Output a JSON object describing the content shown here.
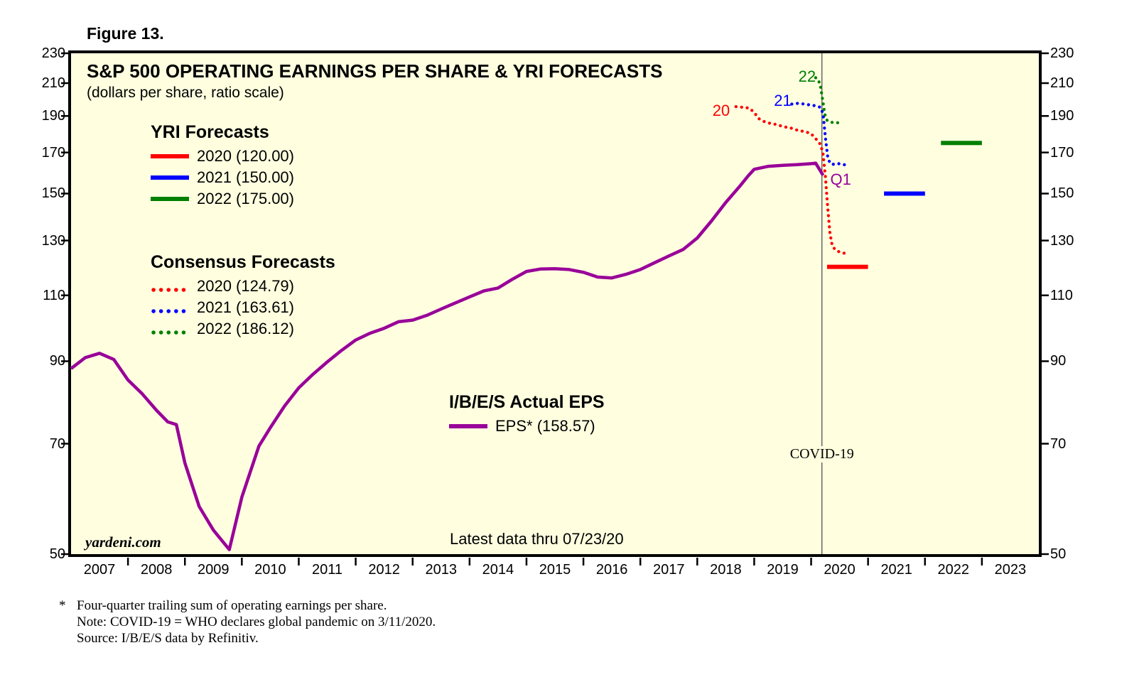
{
  "figure_label": "Figure 13.",
  "chart_data": {
    "type": "line",
    "title": "S&P 500 OPERATING EARNINGS PER SHARE & YRI FORECASTS",
    "subtitle": "(dollars per share, ratio scale)",
    "y_scale": "log",
    "grid": false,
    "ylim": [
      50,
      230
    ],
    "xlim": [
      2007,
      2024
    ],
    "y_ticks": [
      230,
      210,
      190,
      170,
      150,
      130,
      110,
      90,
      70,
      50
    ],
    "x_years": [
      2007,
      2008,
      2009,
      2010,
      2011,
      2012,
      2013,
      2014,
      2015,
      2016,
      2017,
      2018,
      2019,
      2020,
      2021,
      2022,
      2023
    ],
    "covid_line_x": 2020.19,
    "series": [
      {
        "name": "Consensus 2020",
        "style": "dotted",
        "color": "#FF0000",
        "points": [
          [
            2018.68,
            195.5
          ],
          [
            2018.76,
            195.2
          ],
          [
            2018.84,
            195
          ],
          [
            2018.92,
            194.5
          ],
          [
            2019.0,
            192
          ],
          [
            2019.08,
            188.5
          ],
          [
            2019.16,
            187
          ],
          [
            2019.25,
            186
          ],
          [
            2019.33,
            185.5
          ],
          [
            2019.41,
            185
          ],
          [
            2019.5,
            184
          ],
          [
            2019.58,
            183.5
          ],
          [
            2019.66,
            183
          ],
          [
            2019.75,
            182
          ],
          [
            2019.83,
            181.5
          ],
          [
            2019.91,
            181
          ],
          [
            2020.0,
            180
          ],
          [
            2020.06,
            178
          ],
          [
            2020.12,
            176
          ],
          [
            2020.17,
            174
          ],
          [
            2020.21,
            169
          ],
          [
            2020.25,
            158
          ],
          [
            2020.29,
            144
          ],
          [
            2020.33,
            133
          ],
          [
            2020.37,
            128
          ],
          [
            2020.42,
            126.5
          ],
          [
            2020.46,
            126
          ],
          [
            2020.5,
            125.5
          ],
          [
            2020.55,
            125.2
          ],
          [
            2020.6,
            125
          ],
          [
            2020.64,
            124.79
          ]
        ]
      },
      {
        "name": "Consensus 2021",
        "style": "dotted",
        "color": "#0000FF",
        "points": [
          [
            2019.66,
            197
          ],
          [
            2019.72,
            197.3
          ],
          [
            2019.78,
            197.5
          ],
          [
            2019.84,
            197.2
          ],
          [
            2019.9,
            197
          ],
          [
            2019.96,
            196.6
          ],
          [
            2020.02,
            196.3
          ],
          [
            2020.08,
            196
          ],
          [
            2020.13,
            195.5
          ],
          [
            2020.17,
            195
          ],
          [
            2020.21,
            191
          ],
          [
            2020.25,
            178
          ],
          [
            2020.29,
            168
          ],
          [
            2020.33,
            164.5
          ],
          [
            2020.38,
            164
          ],
          [
            2020.43,
            164
          ],
          [
            2020.48,
            164.3
          ],
          [
            2020.53,
            164.2
          ],
          [
            2020.58,
            163.8
          ],
          [
            2020.62,
            163.61
          ]
        ]
      },
      {
        "name": "Consensus 2022",
        "style": "dotted",
        "color": "#008000",
        "points": [
          [
            2020.08,
            213.5
          ],
          [
            2020.12,
            212.5
          ],
          [
            2020.16,
            209
          ],
          [
            2020.2,
            200
          ],
          [
            2020.24,
            191
          ],
          [
            2020.28,
            187.5
          ],
          [
            2020.32,
            186.6
          ],
          [
            2020.37,
            186.3
          ],
          [
            2020.42,
            186.2
          ],
          [
            2020.47,
            186.1
          ],
          [
            2020.52,
            186.12
          ]
        ]
      },
      {
        "name": "I/B/E/S Actual EPS",
        "style": "solid",
        "color": "#990099",
        "width": 4.5,
        "points": [
          [
            2007.0,
            88
          ],
          [
            2007.25,
            91
          ],
          [
            2007.5,
            92.2
          ],
          [
            2007.75,
            90.5
          ],
          [
            2008.0,
            85
          ],
          [
            2008.25,
            81.5
          ],
          [
            2008.5,
            77.5
          ],
          [
            2008.7,
            74.8
          ],
          [
            2008.85,
            74.2
          ],
          [
            2009.0,
            66
          ],
          [
            2009.25,
            57.8
          ],
          [
            2009.5,
            53.8
          ],
          [
            2009.78,
            50.7
          ],
          [
            2010.0,
            59.5
          ],
          [
            2010.3,
            69.5
          ],
          [
            2010.5,
            73.5
          ],
          [
            2010.75,
            78.5
          ],
          [
            2011.0,
            83
          ],
          [
            2011.25,
            86.5
          ],
          [
            2011.5,
            89.8
          ],
          [
            2011.75,
            93
          ],
          [
            2012.0,
            96
          ],
          [
            2012.25,
            98
          ],
          [
            2012.5,
            99.5
          ],
          [
            2012.75,
            101.5
          ],
          [
            2013.0,
            102
          ],
          [
            2013.25,
            103.5
          ],
          [
            2013.5,
            105.5
          ],
          [
            2013.75,
            107.5
          ],
          [
            2014.0,
            109.5
          ],
          [
            2014.25,
            111.5
          ],
          [
            2014.5,
            112.5
          ],
          [
            2014.75,
            115.5
          ],
          [
            2015.0,
            118.3
          ],
          [
            2015.25,
            119.2
          ],
          [
            2015.5,
            119.3
          ],
          [
            2015.75,
            119
          ],
          [
            2016.0,
            118
          ],
          [
            2016.25,
            116.3
          ],
          [
            2016.5,
            116
          ],
          [
            2016.75,
            117.3
          ],
          [
            2017.0,
            119
          ],
          [
            2017.25,
            121.5
          ],
          [
            2017.5,
            124
          ],
          [
            2017.75,
            126.5
          ],
          [
            2018.0,
            131
          ],
          [
            2018.25,
            138
          ],
          [
            2018.5,
            146
          ],
          [
            2018.75,
            153.5
          ],
          [
            2018.9,
            158.5
          ],
          [
            2019.0,
            161.5
          ],
          [
            2019.25,
            163
          ],
          [
            2019.5,
            163.5
          ],
          [
            2019.75,
            163.8
          ],
          [
            2020.0,
            164.3
          ],
          [
            2020.08,
            164.6
          ],
          [
            2020.21,
            158.57
          ]
        ]
      },
      {
        "name": "YRI Forecast 2020 (120.00)",
        "style": "solid",
        "color": "#FF0000",
        "width": 6,
        "points": [
          [
            2020.28,
            120
          ],
          [
            2021.0,
            120
          ]
        ]
      },
      {
        "name": "YRI Forecast 2021 (150.00)",
        "style": "solid",
        "color": "#0000FF",
        "width": 6,
        "points": [
          [
            2021.28,
            150
          ],
          [
            2022.0,
            150
          ]
        ]
      },
      {
        "name": "YRI Forecast 2022 (175.00)",
        "style": "solid",
        "color": "#008000",
        "width": 6,
        "points": [
          [
            2022.28,
            175
          ],
          [
            2023.0,
            175
          ]
        ]
      }
    ]
  },
  "legend": {
    "yri": {
      "header": "YRI Forecasts",
      "items": [
        {
          "label": "2020 (120.00)",
          "color": "#FF0000"
        },
        {
          "label": "2021 (150.00)",
          "color": "#0000FF"
        },
        {
          "label": "2022 (175.00)",
          "color": "#008000"
        }
      ]
    },
    "consensus": {
      "header": "Consensus Forecasts",
      "items": [
        {
          "label": "2020 (124.79)",
          "color": "#FF0000"
        },
        {
          "label": "2021 (163.61)",
          "color": "#0000FF"
        },
        {
          "label": "2022 (186.12)",
          "color": "#008000"
        }
      ]
    },
    "actual": {
      "header": "I/B/E/S Actual EPS",
      "items": [
        {
          "label": "EPS* (158.57)",
          "color": "#990099"
        }
      ]
    }
  },
  "annotations": {
    "watermark": "yardeni.com",
    "latest_note": "Latest data thru 07/23/20",
    "covid_label": "COVID-19"
  },
  "series_labels": [
    {
      "text": "20",
      "color": "#FF0000",
      "t": 2018.42,
      "v": 193
    },
    {
      "text": "21",
      "color": "#0000FF",
      "t": 2019.5,
      "v": 199
    },
    {
      "text": "22",
      "color": "#008000",
      "t": 2019.93,
      "v": 214
    },
    {
      "text": "Q1",
      "color": "#990099",
      "t": 2020.52,
      "v": 156.5
    }
  ],
  "footnotes": {
    "marker": "*",
    "lines": [
      "Four-quarter trailing sum of operating earnings per share.",
      "Note: COVID-19 = WHO declares global pandemic on 3/11/2020.",
      "Source: I/B/E/S data by Refinitiv."
    ]
  }
}
